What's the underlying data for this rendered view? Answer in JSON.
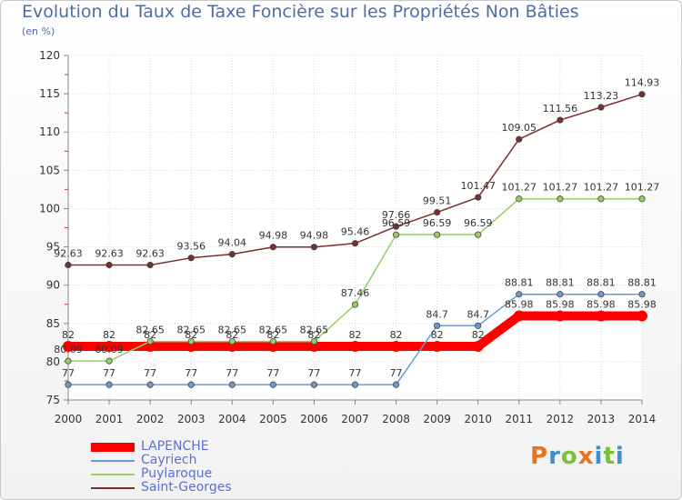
{
  "header": {
    "title": "Evolution du Taux de Taxe Foncière sur les Propriétés Non Bâties",
    "subtitle": "(en %)"
  },
  "logo": {
    "text": "Proxiti",
    "colors": [
      "#e8731e",
      "#3b8fd4",
      "#7bbf3a",
      "#e8731e",
      "#3b8fd4",
      "#7bbf3a",
      "#3b8fd4"
    ]
  },
  "chart_data": {
    "type": "line",
    "x": [
      "2000",
      "2001",
      "2002",
      "2003",
      "2004",
      "2005",
      "2006",
      "2007",
      "2008",
      "2009",
      "2010",
      "2011",
      "2012",
      "2013",
      "2014"
    ],
    "ylim": [
      75,
      120
    ],
    "yticks": [
      75,
      80,
      85,
      90,
      95,
      100,
      105,
      110,
      115,
      120
    ],
    "grid": true,
    "legend_position": "bottom-left",
    "series": [
      {
        "name": "LAPENCHE",
        "color": "#ff0000",
        "stroke": 10,
        "values": [
          82,
          82,
          82,
          82,
          82,
          82,
          82,
          82,
          82,
          82,
          82,
          85.98,
          85.98,
          85.98,
          85.98
        ],
        "labels": [
          "82",
          "82",
          "82",
          "82",
          "82",
          "82",
          "82",
          "82",
          "82",
          "82",
          "82",
          "85.98",
          "85.98",
          "85.98",
          "85.98"
        ]
      },
      {
        "name": "Cayriech",
        "color": "#6a9ad2",
        "stroke": 1.5,
        "values": [
          77,
          77,
          77,
          77,
          77,
          77,
          77,
          77,
          77,
          84.7,
          84.7,
          88.81,
          88.81,
          88.81,
          88.81
        ],
        "labels": [
          "77",
          "77",
          "77",
          "77",
          "77",
          "77",
          "77",
          "77",
          "77",
          "84.7",
          "84.7",
          "88.81",
          "88.81",
          "88.81",
          "88.81"
        ]
      },
      {
        "name": "Puylaroque",
        "color": "#99cc66",
        "stroke": 1.5,
        "values": [
          80.09,
          80.09,
          82.65,
          82.65,
          82.65,
          82.65,
          82.65,
          87.46,
          96.59,
          96.59,
          96.59,
          101.27,
          101.27,
          101.27,
          101.27
        ],
        "labels": [
          "80.09",
          "80.09",
          "82.65",
          "82.65",
          "82.65",
          "82.65",
          "82.65",
          "87.46",
          "96.59",
          "96.59",
          "96.59",
          "101.27",
          "101.27",
          "101.27",
          "101.27"
        ]
      },
      {
        "name": "Saint-Georges",
        "color": "#7a2e2e",
        "stroke": 1.5,
        "values": [
          92.63,
          92.63,
          92.63,
          93.56,
          94.04,
          94.98,
          94.98,
          95.46,
          97.66,
          99.51,
          101.47,
          109.05,
          111.56,
          113.23,
          114.93
        ],
        "labels": [
          "92.63",
          "92.63",
          "92.63",
          "93.56",
          "94.04",
          "94.98",
          "94.98",
          "95.46",
          "97.66",
          "99.51",
          "101.47",
          "109.05",
          "111.56",
          "113.23",
          "114.93"
        ]
      }
    ]
  }
}
